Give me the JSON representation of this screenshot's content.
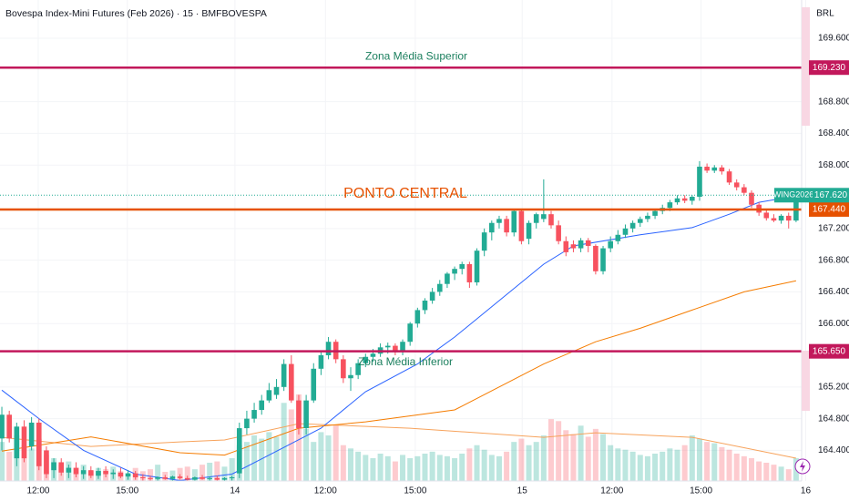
{
  "header": {
    "title": "Bovespa Index-Mini Futures (Feb 2026) · 15 · BMFBOVESPA",
    "currency": "BRL"
  },
  "chart_data": {
    "type": "candlestick",
    "name": "WING2026",
    "up_color": "#22ab94",
    "down_color": "#f7525f",
    "open": [
      164.55,
      164.85,
      164.3,
      164.7,
      164.45,
      164.75,
      164.4,
      164.15,
      164.25,
      164.12,
      164.18,
      164.1,
      164.15,
      164.08,
      164.14,
      164.1,
      164.12,
      164.07,
      164.11,
      164.06,
      164.05,
      164.04,
      164.06,
      164.04,
      164.07,
      164.05,
      164.03,
      164.06,
      164.04,
      164.05,
      164.03,
      164.05,
      164.11,
      164.68,
      164.8,
      164.91,
      165.03,
      165.1,
      165.2,
      165.49,
      165.03,
      164.68,
      165.03,
      165.43,
      165.6,
      165.77,
      165.55,
      165.31,
      165.35,
      165.5,
      165.58,
      165.62,
      165.7,
      165.72,
      165.64,
      165.77,
      166.0,
      166.17,
      166.29,
      166.4,
      166.5,
      166.63,
      166.69,
      166.75,
      166.52,
      166.92,
      167.15,
      167.27,
      167.32,
      167.15,
      167.42,
      167.07,
      167.27,
      167.32,
      167.38,
      167.24,
      167.04,
      167.0,
      166.95,
      167.05,
      166.98,
      166.66,
      166.95,
      167.04,
      167.12,
      167.2,
      167.27,
      167.32,
      167.36,
      167.42,
      167.46,
      167.53,
      167.58,
      167.55,
      167.6,
      167.98,
      167.93,
      167.97,
      167.92,
      167.78,
      167.72,
      167.65,
      167.5,
      167.4,
      167.33,
      167.3,
      167.36,
      167.3
    ],
    "high": [
      164.95,
      164.9,
      164.75,
      164.78,
      164.82,
      164.8,
      164.45,
      164.3,
      164.3,
      164.22,
      164.25,
      164.2,
      164.2,
      164.18,
      164.2,
      164.16,
      164.18,
      164.15,
      164.14,
      164.1,
      164.08,
      164.07,
      164.09,
      164.08,
      164.1,
      164.08,
      164.07,
      164.09,
      164.07,
      164.08,
      164.06,
      164.08,
      164.75,
      164.9,
      165.0,
      165.1,
      165.25,
      165.3,
      165.55,
      165.6,
      165.1,
      165.1,
      165.5,
      165.65,
      165.83,
      165.8,
      165.6,
      165.45,
      165.55,
      165.62,
      165.68,
      165.75,
      165.76,
      165.75,
      165.8,
      166.02,
      166.2,
      166.32,
      166.45,
      166.55,
      166.65,
      166.72,
      166.78,
      166.78,
      166.95,
      167.2,
      167.3,
      167.36,
      167.36,
      167.44,
      167.45,
      167.3,
      167.4,
      167.82,
      167.42,
      167.3,
      167.1,
      167.05,
      167.08,
      167.08,
      167.0,
      166.98,
      167.1,
      167.18,
      167.25,
      167.3,
      167.35,
      167.4,
      167.45,
      167.5,
      167.56,
      167.62,
      167.62,
      167.62,
      168.05,
      168.02,
      168.0,
      168.0,
      167.95,
      167.82,
      167.76,
      167.68,
      167.53,
      167.44,
      167.38,
      167.38,
      167.4,
      167.64
    ],
    "low": [
      164.4,
      164.5,
      164.2,
      164.25,
      164.4,
      164.15,
      164.05,
      164.05,
      164.08,
      164.05,
      164.06,
      164.04,
      164.05,
      164.04,
      164.06,
      164.04,
      164.05,
      164.03,
      164.03,
      164.02,
      164.02,
      164.02,
      164.03,
      164.02,
      164.03,
      164.02,
      164.02,
      164.03,
      164.02,
      164.02,
      164.02,
      164.02,
      164.05,
      164.6,
      164.75,
      164.85,
      165.0,
      165.05,
      165.15,
      165.0,
      164.6,
      164.6,
      165.0,
      165.35,
      165.55,
      165.5,
      165.25,
      165.15,
      165.3,
      165.45,
      165.52,
      165.58,
      165.62,
      165.6,
      165.6,
      165.72,
      165.95,
      166.12,
      166.25,
      166.35,
      166.45,
      166.55,
      166.62,
      166.45,
      166.48,
      166.85,
      167.05,
      167.2,
      167.1,
      167.1,
      167.0,
      167.0,
      167.2,
      167.28,
      167.2,
      167.0,
      166.85,
      166.9,
      166.9,
      166.9,
      166.62,
      166.62,
      166.9,
      167.0,
      167.08,
      167.15,
      167.22,
      167.28,
      167.32,
      167.38,
      167.42,
      167.5,
      167.52,
      167.5,
      167.55,
      167.9,
      167.9,
      167.88,
      167.75,
      167.68,
      167.62,
      167.46,
      167.36,
      167.3,
      167.28,
      167.26,
      167.2,
      167.28
    ],
    "close": [
      164.85,
      164.55,
      164.7,
      164.3,
      164.75,
      164.2,
      164.1,
      164.25,
      164.12,
      164.18,
      164.1,
      164.15,
      164.08,
      164.14,
      164.1,
      164.12,
      164.07,
      164.11,
      164.06,
      164.05,
      164.04,
      164.06,
      164.04,
      164.07,
      164.05,
      164.03,
      164.06,
      164.04,
      164.05,
      164.03,
      164.05,
      164.06,
      164.68,
      164.8,
      164.91,
      165.03,
      165.16,
      165.2,
      165.49,
      165.03,
      164.68,
      165.03,
      165.43,
      165.6,
      165.77,
      165.55,
      165.31,
      165.35,
      165.5,
      165.58,
      165.62,
      165.7,
      165.72,
      165.64,
      165.77,
      166.0,
      166.17,
      166.29,
      166.4,
      166.5,
      166.63,
      166.69,
      166.75,
      166.52,
      166.92,
      167.15,
      167.27,
      167.32,
      167.15,
      167.42,
      167.04,
      167.27,
      167.38,
      167.38,
      167.24,
      167.04,
      166.9,
      166.95,
      167.05,
      166.98,
      166.66,
      166.95,
      167.04,
      167.12,
      167.2,
      167.27,
      167.32,
      167.36,
      167.42,
      167.46,
      167.53,
      167.58,
      167.55,
      167.6,
      167.98,
      167.93,
      167.97,
      167.92,
      167.78,
      167.72,
      167.65,
      167.5,
      167.4,
      167.33,
      167.3,
      167.36,
      167.3,
      167.62
    ],
    "volume": [
      60,
      45,
      70,
      55,
      50,
      65,
      40,
      35,
      25,
      30,
      20,
      25,
      15,
      20,
      18,
      22,
      15,
      12,
      20,
      15,
      18,
      25,
      14,
      16,
      20,
      22,
      18,
      25,
      28,
      30,
      22,
      35,
      55,
      60,
      70,
      65,
      75,
      68,
      120,
      110,
      133,
      80,
      60,
      75,
      70,
      85,
      55,
      50,
      45,
      40,
      35,
      42,
      38,
      30,
      40,
      35,
      38,
      42,
      45,
      40,
      38,
      35,
      42,
      50,
      55,
      48,
      40,
      38,
      45,
      60,
      65,
      55,
      60,
      70,
      95,
      92,
      78,
      72,
      85,
      68,
      80,
      72,
      55,
      50,
      48,
      45,
      40,
      38,
      42,
      45,
      50,
      48,
      55,
      70,
      65,
      60,
      58,
      52,
      48,
      42,
      38,
      35,
      30,
      28,
      25,
      22,
      18,
      35
    ],
    "volume_ma": {
      "color": "#f7a35c",
      "x": [
        0,
        12,
        24,
        30,
        40,
        55,
        73,
        80,
        93,
        107
      ],
      "values": [
        67,
        53,
        60,
        63,
        88,
        81,
        67,
        74,
        67,
        35
      ]
    },
    "lines": [
      {
        "color": "#2962ff",
        "x": [
          0,
          5,
          11,
          18,
          24,
          31,
          36,
          43,
          49,
          56,
          61,
          67,
          73,
          77,
          86,
          93,
          98,
          102,
          107
        ],
        "values": [
          165.16,
          164.8,
          164.4,
          164.1,
          164.02,
          164.1,
          164.34,
          164.68,
          165.14,
          165.49,
          165.83,
          166.29,
          166.75,
          166.98,
          167.12,
          167.21,
          167.38,
          167.53,
          167.61
        ]
      },
      {
        "color": "#f57c00",
        "x": [
          0,
          12,
          24,
          30,
          40,
          49,
          61,
          73,
          80,
          86,
          93,
          100,
          107
        ],
        "values": [
          164.39,
          164.57,
          164.37,
          164.34,
          164.68,
          164.76,
          164.91,
          165.49,
          165.77,
          165.94,
          166.17,
          166.4,
          166.54
        ]
      }
    ],
    "levels": [
      {
        "label": "Zona Média Superior",
        "value": 169.23,
        "value_label": "169.230",
        "color": "#c2185b"
      },
      {
        "label": "PONTO CENTRAL",
        "value": 167.44,
        "value_label": "167.440",
        "color": "#e65100"
      },
      {
        "label": "Zona Média Inferior",
        "value": 165.65,
        "value_label": "165.650",
        "color": "#c2185b"
      }
    ],
    "last": {
      "value": 167.62,
      "label": "167.620"
    },
    "xlim": [
      -0.25,
      107.75
    ],
    "xticks": [
      {
        "value": 4.9,
        "label": "12:00"
      },
      {
        "value": 16.9,
        "label": "15:00"
      },
      {
        "value": 31.4,
        "label": "14"
      },
      {
        "value": 43.6,
        "label": "12:00"
      },
      {
        "value": 55.7,
        "label": "15:00"
      },
      {
        "value": 70.1,
        "label": "15"
      },
      {
        "value": 82.2,
        "label": "12:00"
      },
      {
        "value": 94.2,
        "label": "15:00"
      },
      {
        "value": 108.3,
        "label": "16"
      }
    ],
    "ylim": [
      164.014,
      170.083
    ],
    "yticks": [
      {
        "value": 169.6,
        "label": "169.600"
      },
      {
        "value": 168.8,
        "label": "168.800"
      },
      {
        "value": 168.4,
        "label": "168.400"
      },
      {
        "value": 168.0,
        "label": "168.000"
      },
      {
        "value": 167.2,
        "label": "167.200"
      },
      {
        "value": 166.8,
        "label": "166.800"
      },
      {
        "value": 166.4,
        "label": "166.400"
      },
      {
        "value": 166.0,
        "label": "166.000"
      },
      {
        "value": 165.2,
        "label": "165.200"
      },
      {
        "value": 164.8,
        "label": "164.800"
      },
      {
        "value": 164.4,
        "label": "164.400"
      }
    ],
    "grid": true
  }
}
